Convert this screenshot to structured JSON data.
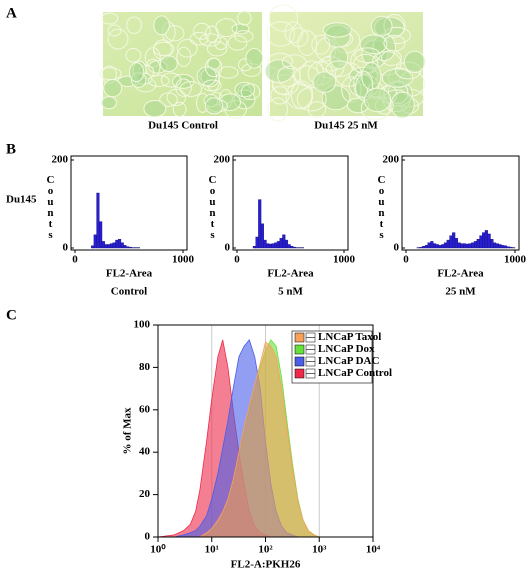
{
  "figure": {
    "panel_labels": [
      "A",
      "B",
      "C"
    ],
    "images": [
      {
        "caption": "Du145 Control"
      },
      {
        "caption": "Du145 25 nM"
      }
    ],
    "row_label": "Du145"
  },
  "chart_data": [
    {
      "type": "histogram",
      "xlabel": "FL2-Area",
      "subtitle": "Control",
      "ylabel": "Counts",
      "color": "#2a1fd0",
      "bins": [
        0,
        25,
        50,
        75,
        100,
        125,
        150,
        175,
        200,
        225,
        250,
        275,
        300,
        325,
        350,
        375,
        400,
        425,
        450,
        475,
        500,
        525,
        550,
        575,
        600,
        625,
        650,
        675,
        700,
        725,
        750,
        775,
        800,
        825,
        850,
        875,
        900,
        925,
        950,
        975,
        1000
      ],
      "counts": [
        0,
        0,
        0,
        0,
        0,
        0,
        5,
        30,
        125,
        60,
        15,
        8,
        8,
        10,
        12,
        18,
        20,
        12,
        6,
        3,
        2,
        1,
        1,
        1,
        0,
        0,
        0,
        0,
        0,
        0,
        0,
        0,
        0,
        0,
        0,
        0,
        0,
        0,
        0,
        0
      ],
      "xlim": [
        0,
        1000
      ],
      "ylim": [
        0,
        200
      ],
      "xticks": [
        0,
        1000
      ],
      "yticks": [
        0,
        200
      ]
    },
    {
      "type": "histogram",
      "xlabel": "FL2-Area",
      "subtitle": "5 nM",
      "ylabel": "Counts",
      "color": "#2a1fd0",
      "bins": [
        0,
        25,
        50,
        75,
        100,
        125,
        150,
        175,
        200,
        225,
        250,
        275,
        300,
        325,
        350,
        375,
        400,
        425,
        450,
        475,
        500,
        525,
        550,
        575,
        600,
        625,
        650,
        675,
        700,
        725,
        750,
        775,
        800,
        825,
        850,
        875,
        900,
        925,
        950,
        975,
        1000
      ],
      "counts": [
        0,
        0,
        0,
        0,
        0,
        0,
        4,
        25,
        110,
        55,
        18,
        10,
        9,
        10,
        12,
        15,
        22,
        30,
        18,
        8,
        4,
        2,
        1,
        1,
        1,
        0,
        0,
        0,
        0,
        0,
        0,
        0,
        0,
        0,
        0,
        0,
        0,
        0,
        0,
        0
      ],
      "xlim": [
        0,
        1000
      ],
      "ylim": [
        0,
        200
      ],
      "xticks": [
        0,
        1000
      ],
      "yticks": [
        0,
        200
      ]
    },
    {
      "type": "histogram",
      "xlabel": "FL2-Area",
      "subtitle": "25 nM",
      "ylabel": "Counts",
      "color": "#2a1fd0",
      "bins": [
        0,
        25,
        50,
        75,
        100,
        125,
        150,
        175,
        200,
        225,
        250,
        275,
        300,
        325,
        350,
        375,
        400,
        425,
        450,
        475,
        500,
        525,
        550,
        575,
        600,
        625,
        650,
        675,
        700,
        725,
        750,
        775,
        800,
        825,
        850,
        875,
        900,
        925,
        950,
        975,
        1000
      ],
      "counts": [
        0,
        0,
        0,
        0,
        1,
        2,
        4,
        6,
        12,
        15,
        10,
        8,
        6,
        8,
        12,
        18,
        28,
        35,
        22,
        12,
        10,
        10,
        9,
        10,
        12,
        15,
        20,
        28,
        35,
        40,
        32,
        20,
        12,
        10,
        8,
        6,
        5,
        3,
        2,
        1
      ],
      "xlim": [
        0,
        1000
      ],
      "ylim": [
        0,
        200
      ],
      "xticks": [
        0,
        1000
      ],
      "yticks": [
        0,
        200
      ]
    },
    {
      "type": "area",
      "xlabel": "FL2-A:PKH26",
      "ylabel": "% of Max",
      "xscale": "log",
      "grid": "x",
      "legend": "top-right",
      "x": [
        1,
        2,
        3,
        4,
        5,
        6,
        8,
        10,
        13,
        16,
        20,
        25,
        32,
        40,
        50,
        63,
        80,
        100,
        126,
        158,
        200,
        250,
        316,
        400,
        500,
        630,
        800,
        1000
      ],
      "series": [
        {
          "name": "LNCaP Taxol",
          "color": "#f7a15a",
          "values": [
            0,
            0,
            0,
            0,
            0,
            0,
            2,
            4,
            8,
            12,
            18,
            27,
            40,
            52,
            62,
            72,
            82,
            92,
            90,
            85,
            70,
            52,
            33,
            17,
            8,
            3,
            1,
            0
          ]
        },
        {
          "name": "LNCaP Dox",
          "color": "#66e03a",
          "values": [
            0,
            0,
            0,
            0,
            0,
            0,
            1,
            3,
            6,
            10,
            16,
            25,
            38,
            50,
            60,
            70,
            80,
            88,
            93,
            90,
            75,
            55,
            35,
            18,
            8,
            3,
            1,
            0
          ]
        },
        {
          "name": "LNCaP DAC",
          "color": "#4a5ee8",
          "values": [
            0,
            0,
            1,
            2,
            3,
            5,
            10,
            18,
            30,
            42,
            55,
            70,
            85,
            90,
            93,
            85,
            70,
            45,
            25,
            12,
            5,
            2,
            1,
            0,
            0,
            0,
            0,
            0
          ]
        },
        {
          "name": "LNCaP Control",
          "color": "#ee2a4a",
          "values": [
            0,
            1,
            3,
            6,
            12,
            22,
            45,
            65,
            85,
            93,
            80,
            60,
            40,
            25,
            12,
            5,
            2,
            1,
            0,
            0,
            0,
            0,
            0,
            0,
            0,
            0,
            0,
            0
          ]
        }
      ],
      "xlim": [
        1,
        10000
      ],
      "ylim": [
        0,
        100
      ],
      "xticks": [
        {
          "value": 1,
          "label": "10⁰"
        },
        {
          "value": 10,
          "label": "10¹"
        },
        {
          "value": 100,
          "label": "10²"
        },
        {
          "value": 1000,
          "label": "10³"
        },
        {
          "value": 10000,
          "label": "10⁴"
        }
      ],
      "yticks": [
        0,
        20,
        40,
        60,
        80,
        100
      ]
    }
  ]
}
